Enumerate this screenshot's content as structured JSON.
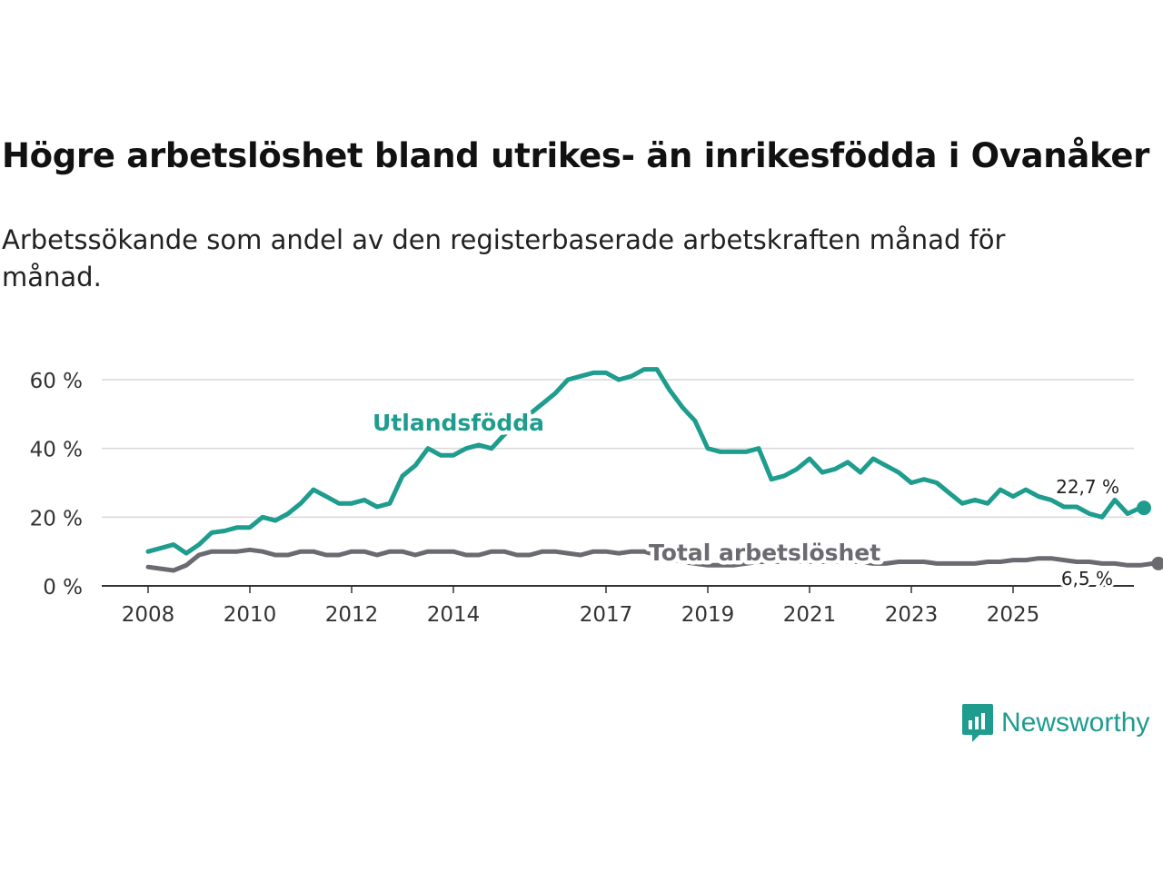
{
  "title": "Högre arbetslöshet bland utrikes- än inrikesfödda i Ovanåker",
  "subtitle": "Arbetssökande som andel av den registerbaserade arbetskraften månad för månad.",
  "brand": {
    "name": "Newsworthy",
    "color": "#1e9c8e"
  },
  "chart_data": {
    "type": "line",
    "x_start": 2008.0,
    "x_step": 0.25,
    "ylim": [
      0,
      60
    ],
    "yticks": [
      {
        "value": 0,
        "label": "0 %"
      },
      {
        "value": 20,
        "label": "20 %"
      },
      {
        "value": 40,
        "label": "40 %"
      },
      {
        "value": 60,
        "label": "60 %"
      }
    ],
    "xticks": [
      {
        "value": 2008,
        "label": "2008"
      },
      {
        "value": 2010,
        "label": "2010"
      },
      {
        "value": 2012,
        "label": "2012"
      },
      {
        "value": 2014,
        "label": "2014"
      },
      {
        "value": 2017,
        "label": "2017"
      },
      {
        "value": 2019,
        "label": "2019"
      },
      {
        "value": 2021,
        "label": "2021"
      },
      {
        "value": 2023,
        "label": "2023"
      },
      {
        "value": 2025,
        "label": "2025"
      }
    ],
    "series": [
      {
        "name": "Utlandsfödda",
        "color": "#1e9c8e",
        "end_label": "22,7 %",
        "values": [
          10,
          11,
          12,
          9.5,
          12,
          15.5,
          16,
          17,
          17,
          20,
          19,
          21,
          24,
          28,
          26,
          24,
          24,
          25,
          23,
          24,
          32,
          35,
          40,
          38,
          38,
          40,
          41,
          40,
          44,
          47,
          50,
          53,
          56,
          60,
          61,
          62,
          62,
          60,
          61,
          63,
          63,
          57,
          52,
          48,
          40,
          39,
          39,
          39,
          40,
          31,
          32,
          34,
          37,
          33,
          34,
          36,
          33,
          37,
          35,
          33,
          30,
          31,
          30,
          27,
          24,
          25,
          24,
          28,
          26,
          28,
          26,
          25,
          23,
          23,
          21,
          20,
          25,
          21,
          22.7
        ]
      },
      {
        "name": "Total arbetslöshet",
        "color": "#6b6a70",
        "end_label": "6,5 %",
        "values": [
          5.5,
          5,
          4.5,
          6,
          9,
          10,
          10,
          10,
          10.5,
          10,
          9,
          9,
          10,
          10,
          9,
          9,
          10,
          10,
          9,
          10,
          10,
          9,
          10,
          10,
          10,
          9,
          9,
          10,
          10,
          9,
          9,
          10,
          10,
          9.5,
          9,
          10,
          10,
          9.5,
          10,
          10,
          9,
          8,
          7,
          6.5,
          6,
          6,
          6,
          6.5,
          7,
          7,
          7,
          7,
          7,
          7,
          7,
          7,
          7,
          6.5,
          6.5,
          7,
          7,
          7,
          6.5,
          6.5,
          6.5,
          6.5,
          7,
          7,
          7.5,
          7.5,
          8,
          8,
          7.5,
          7,
          7,
          6.5,
          6.5,
          6,
          6,
          6.5
        ]
      }
    ]
  }
}
